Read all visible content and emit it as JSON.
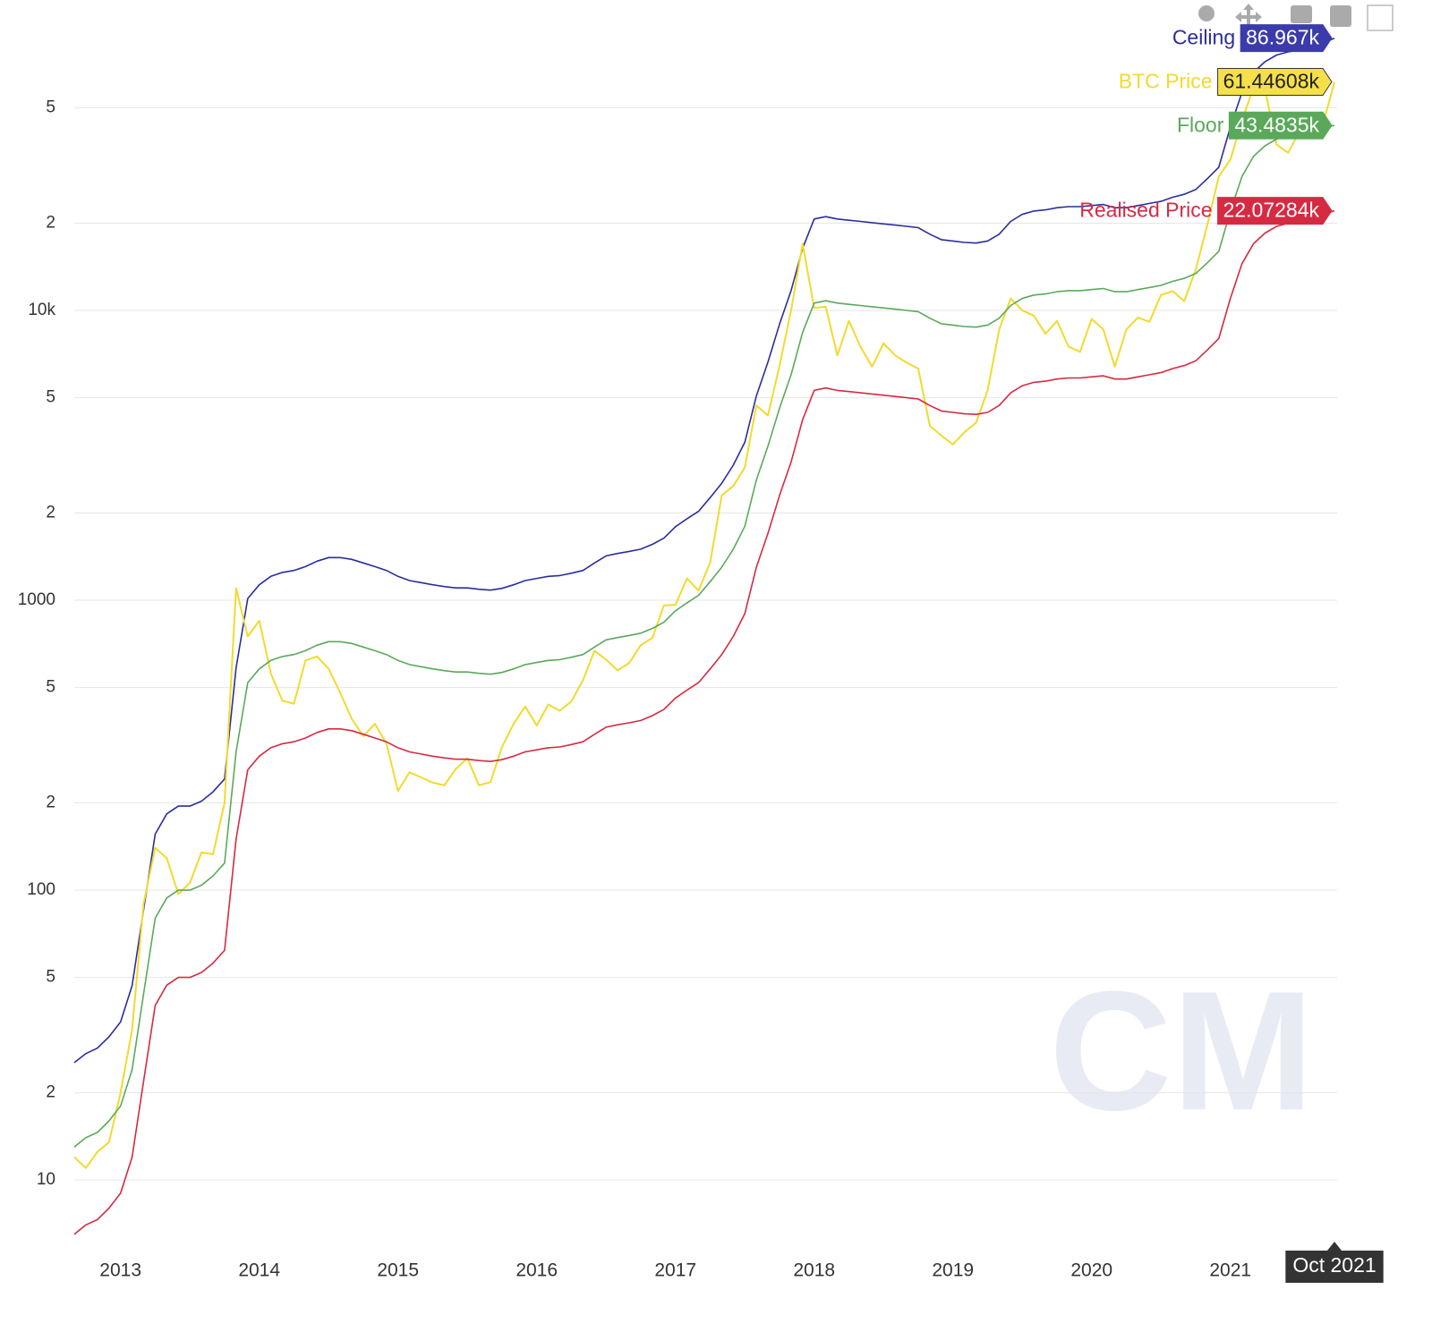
{
  "chart_data": {
    "type": "line",
    "log_y": true,
    "grid": true,
    "watermark": "CM",
    "crosshair_label": "Oct 2021",
    "x": [
      "2012-09",
      "2012-10",
      "2012-11",
      "2012-12",
      "2013-01",
      "2013-02",
      "2013-03",
      "2013-04",
      "2013-05",
      "2013-06",
      "2013-07",
      "2013-08",
      "2013-09",
      "2013-10",
      "2013-11",
      "2013-12",
      "2014-01",
      "2014-02",
      "2014-03",
      "2014-04",
      "2014-05",
      "2014-06",
      "2014-07",
      "2014-08",
      "2014-09",
      "2014-10",
      "2014-11",
      "2014-12",
      "2015-01",
      "2015-02",
      "2015-03",
      "2015-04",
      "2015-05",
      "2015-06",
      "2015-07",
      "2015-08",
      "2015-09",
      "2015-10",
      "2015-11",
      "2015-12",
      "2016-01",
      "2016-02",
      "2016-03",
      "2016-04",
      "2016-05",
      "2016-06",
      "2016-07",
      "2016-08",
      "2016-09",
      "2016-10",
      "2016-11",
      "2016-12",
      "2017-01",
      "2017-02",
      "2017-03",
      "2017-04",
      "2017-05",
      "2017-06",
      "2017-07",
      "2017-08",
      "2017-09",
      "2017-10",
      "2017-11",
      "2017-12",
      "2018-01",
      "2018-02",
      "2018-03",
      "2018-04",
      "2018-05",
      "2018-06",
      "2018-07",
      "2018-08",
      "2018-09",
      "2018-10",
      "2018-11",
      "2018-12",
      "2019-01",
      "2019-02",
      "2019-03",
      "2019-04",
      "2019-05",
      "2019-06",
      "2019-07",
      "2019-08",
      "2019-09",
      "2019-10",
      "2019-11",
      "2019-12",
      "2020-01",
      "2020-02",
      "2020-03",
      "2020-04",
      "2020-05",
      "2020-06",
      "2020-07",
      "2020-08",
      "2020-09",
      "2020-10",
      "2020-11",
      "2020-12",
      "2021-01",
      "2021-02",
      "2021-03",
      "2021-04",
      "2021-05",
      "2021-06",
      "2021-07",
      "2021-08",
      "2021-09",
      "2021-10"
    ],
    "xlim": [
      "2012-09",
      "2021-10"
    ],
    "xticks": [
      "2013",
      "2014",
      "2015",
      "2016",
      "2017",
      "2018",
      "2019",
      "2020",
      "2021"
    ],
    "ylim": [
      6,
      100000
    ],
    "yticks": [
      {
        "value": 50000,
        "label": "5"
      },
      {
        "value": 20000,
        "label": "2"
      },
      {
        "value": 10000,
        "label": "10k"
      },
      {
        "value": 5000,
        "label": "5"
      },
      {
        "value": 2000,
        "label": "2"
      },
      1000,
      {
        "value": 500,
        "label": "5"
      },
      {
        "value": 200,
        "label": "2"
      },
      100,
      {
        "value": 50,
        "label": "5"
      },
      {
        "value": 20,
        "label": "2"
      },
      10
    ],
    "series": [
      {
        "name": "Ceiling",
        "color": "#2a2e9c",
        "label_color": "#3b3caa",
        "end_label": "86.967k",
        "values": [
          25.4,
          27.3,
          28.5,
          31.2,
          35.1,
          46.8,
          85.8,
          156,
          183.3,
          195,
          195,
          202.8,
          218.4,
          241.8,
          585,
          1014,
          1131,
          1209,
          1248,
          1267.5,
          1306.5,
          1365,
          1404,
          1404,
          1384.5,
          1345.5,
          1306.5,
          1267.5,
          1209,
          1170,
          1150.5,
          1131,
          1115.4,
          1103.7,
          1103.7,
          1092,
          1084.2,
          1099.8,
          1131,
          1170,
          1189.5,
          1209,
          1216.8,
          1240.2,
          1267.5,
          1345.5,
          1423.5,
          1450.8,
          1474.2,
          1501.5,
          1560,
          1638,
          1794,
          1911,
          2028,
          2262,
          2535,
          2925,
          3510,
          5070,
          6630,
          8970,
          11700,
          16380,
          20670,
          21060,
          20670,
          20475,
          20280,
          20085,
          19890,
          19695,
          19500,
          19305,
          18330,
          17550,
          17355,
          17160,
          17082,
          17355,
          18330,
          20280,
          21450,
          22035,
          22230,
          22620,
          22815,
          22815,
          23010,
          23205,
          22620,
          22620,
          23010,
          23400,
          23790,
          24570,
          25155,
          26130,
          28470,
          31200,
          42900,
          56550,
          66300,
          72150,
          76050,
          78000,
          79170,
          81120,
          83460,
          86967
        ]
      },
      {
        "name": "BTC Price",
        "color": "#f2da2e",
        "label_color": "#f5e04a",
        "end_label": "61.44608k",
        "values": [
          12,
          11,
          12.5,
          13.5,
          20,
          33,
          90,
          140,
          129,
          97,
          106,
          135,
          133,
          200,
          1100,
          750,
          850,
          560,
          450,
          440,
          620,
          640,
          580,
          480,
          390,
          340,
          375,
          320,
          220,
          255,
          245,
          235,
          230,
          262,
          285,
          230,
          236,
          312,
          375,
          430,
          370,
          437,
          416,
          448,
          530,
          670,
          624,
          573,
          608,
          700,
          742,
          960,
          965,
          1190,
          1080,
          1350,
          2300,
          2480,
          2870,
          4700,
          4340,
          6450,
          10000,
          17000,
          10200,
          10300,
          7000,
          9200,
          7500,
          6400,
          7700,
          7000,
          6600,
          6300,
          4000,
          3700,
          3450,
          3800,
          4100,
          5300,
          8600,
          11000,
          10000,
          9600,
          8300,
          9200,
          7500,
          7200,
          9350,
          8600,
          6400,
          8600,
          9450,
          9140,
          11300,
          11650,
          10780,
          13800,
          19700,
          29000,
          33100,
          45200,
          58800,
          57700,
          37300,
          35000,
          41500,
          47100,
          43800,
          61446.08
        ]
      },
      {
        "name": "Floor",
        "color": "#5aa95a",
        "label_color": "#5aa95a",
        "end_label": "43.4835k",
        "values": [
          13,
          14,
          14.6,
          16,
          18,
          24,
          44,
          80,
          94,
          100,
          100,
          104,
          112,
          124,
          300,
          520,
          580,
          620,
          640,
          650,
          670,
          700,
          720,
          720,
          710,
          690,
          670,
          650,
          620,
          600,
          590,
          580,
          572,
          566,
          566,
          560,
          556,
          564,
          580,
          600,
          610,
          620,
          624,
          636,
          650,
          690,
          730,
          744,
          756,
          770,
          800,
          840,
          920,
          980,
          1040,
          1160,
          1300,
          1500,
          1800,
          2600,
          3400,
          4600,
          6000,
          8400,
          10600,
          10800,
          10600,
          10500,
          10400,
          10300,
          10200,
          10100,
          10000,
          9900,
          9400,
          9000,
          8900,
          8800,
          8760,
          8900,
          9400,
          10400,
          11000,
          11300,
          11400,
          11600,
          11700,
          11700,
          11800,
          11900,
          11600,
          11600,
          11800,
          12000,
          12200,
          12600,
          12900,
          13400,
          14600,
          16000,
          22000,
          29000,
          34000,
          37000,
          39000,
          40000,
          40600,
          41600,
          42800,
          43483.5
        ]
      },
      {
        "name": "Realised Price",
        "color": "#d62a42",
        "label_color": "#d62a42",
        "end_label": "22.07284k",
        "values": [
          6.5,
          7,
          7.3,
          8,
          9,
          12,
          22,
          40,
          47,
          50,
          50,
          52,
          56,
          62,
          150,
          260,
          290,
          310,
          320,
          325,
          335,
          350,
          360,
          360,
          355,
          345,
          335,
          325,
          310,
          300,
          295,
          290,
          286,
          283,
          283,
          280,
          278,
          282,
          290,
          300,
          305,
          310,
          312,
          318,
          325,
          345,
          365,
          372,
          378,
          385,
          400,
          420,
          460,
          490,
          520,
          580,
          650,
          750,
          900,
          1300,
          1700,
          2300,
          3000,
          4200,
          5300,
          5400,
          5300,
          5250,
          5200,
          5150,
          5100,
          5050,
          5000,
          4950,
          4700,
          4500,
          4450,
          4400,
          4380,
          4450,
          4700,
          5200,
          5500,
          5650,
          5700,
          5800,
          5850,
          5850,
          5900,
          5950,
          5800,
          5800,
          5900,
          6000,
          6100,
          6300,
          6450,
          6700,
          7300,
          8000,
          11000,
          14500,
          17000,
          18500,
          19500,
          20000,
          20300,
          20800,
          21400,
          22072.84
        ]
      }
    ]
  }
}
